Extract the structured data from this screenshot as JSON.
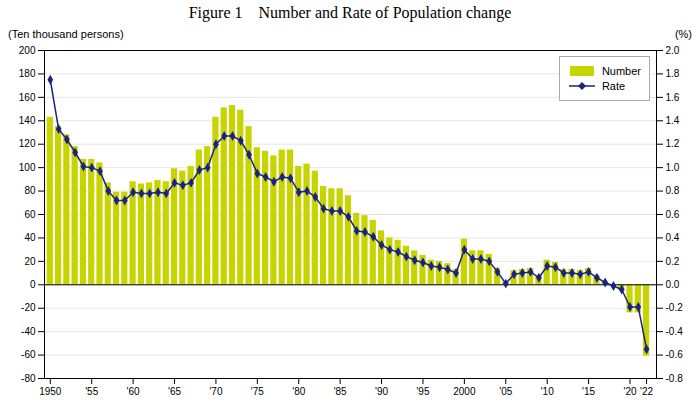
{
  "chart_data": {
    "type": "bar",
    "title": "Figure 1    Number and Rate of Population change",
    "ylabel": "(Ten thousand persons)",
    "y2label": "(%)",
    "x": [
      1950,
      1951,
      1952,
      1953,
      1954,
      1955,
      1956,
      1957,
      1958,
      1959,
      1960,
      1961,
      1962,
      1963,
      1964,
      1965,
      1966,
      1967,
      1968,
      1969,
      1970,
      1971,
      1972,
      1973,
      1974,
      1975,
      1976,
      1977,
      1978,
      1979,
      1980,
      1981,
      1982,
      1983,
      1984,
      1985,
      1986,
      1987,
      1988,
      1989,
      1990,
      1991,
      1992,
      1993,
      1994,
      1995,
      1996,
      1997,
      1998,
      1999,
      2000,
      2001,
      2002,
      2003,
      2004,
      2005,
      2006,
      2007,
      2008,
      2009,
      2010,
      2011,
      2012,
      2013,
      2014,
      2015,
      2016,
      2017,
      2018,
      2019,
      2020,
      2021,
      2022
    ],
    "series": [
      {
        "name": "Number",
        "type": "bar",
        "color": "#c8d400",
        "values": [
          143,
          135,
          128,
          118,
          107,
          107,
          104,
          87,
          79,
          79,
          88,
          86,
          87,
          89,
          88,
          99,
          97,
          101,
          115,
          118,
          143,
          151,
          153,
          149,
          135,
          117,
          114,
          110,
          115,
          115,
          101,
          103,
          97,
          84,
          82,
          82,
          76,
          61,
          59,
          55,
          46,
          40,
          38,
          33,
          29,
          25,
          21,
          20,
          18,
          13,
          39,
          29,
          29,
          26,
          14,
          2,
          12,
          13,
          14,
          8,
          21,
          19,
          13,
          13,
          12,
          14,
          8,
          2,
          -1,
          -5,
          -24,
          -24,
          -61
        ]
      },
      {
        "name": "Rate",
        "type": "line",
        "color": "#1a237e",
        "marker": "diamond",
        "axis": "y2",
        "values": [
          1.75,
          1.33,
          1.24,
          1.13,
          1.01,
          1.0,
          0.97,
          0.8,
          0.72,
          0.72,
          0.79,
          0.78,
          0.78,
          0.79,
          0.78,
          0.87,
          0.85,
          0.87,
          0.98,
          1.0,
          1.2,
          1.27,
          1.27,
          1.23,
          1.11,
          0.95,
          0.92,
          0.88,
          0.92,
          0.91,
          0.79,
          0.8,
          0.75,
          0.65,
          0.63,
          0.63,
          0.58,
          0.46,
          0.45,
          0.41,
          0.34,
          0.3,
          0.28,
          0.24,
          0.21,
          0.19,
          0.16,
          0.15,
          0.13,
          0.1,
          0.3,
          0.22,
          0.22,
          0.2,
          0.11,
          0.01,
          0.09,
          0.1,
          0.11,
          0.06,
          0.16,
          0.15,
          0.1,
          0.1,
          0.09,
          0.11,
          0.06,
          0.02,
          -0.01,
          -0.04,
          -0.19,
          -0.19,
          -0.55
        ]
      }
    ],
    "xlim": [
      1949.3,
      2023.2
    ],
    "xticks": [
      1950,
      {
        "value": 1955,
        "label": "'55"
      },
      {
        "value": 1960,
        "label": "'60"
      },
      {
        "value": 1965,
        "label": "'65"
      },
      {
        "value": 1970,
        "label": "'70"
      },
      {
        "value": 1975,
        "label": "'75"
      },
      {
        "value": 1980,
        "label": "'80"
      },
      {
        "value": 1985,
        "label": "'85"
      },
      {
        "value": 1990,
        "label": "'90"
      },
      {
        "value": 1995,
        "label": "'95"
      },
      2000,
      {
        "value": 2005,
        "label": "'05"
      },
      {
        "value": 2010,
        "label": "'10"
      },
      {
        "value": 2015,
        "label": "'15"
      },
      {
        "value": 2020,
        "label": "'20"
      },
      {
        "value": 2022,
        "label": "'22"
      }
    ],
    "ylim": [
      -80,
      200
    ],
    "yticks": [
      -80,
      -60,
      -40,
      -20,
      0,
      20,
      40,
      60,
      80,
      100,
      120,
      140,
      160,
      180,
      200
    ],
    "y2lim": [
      -0.8,
      2.0
    ],
    "y2ticks": [
      -0.8,
      -0.6,
      -0.4,
      -0.2,
      {
        "value": 0.0,
        "label": "0.0"
      },
      0.2,
      0.4,
      0.6,
      0.8,
      {
        "value": 1.0,
        "label": "1.0"
      },
      1.2,
      1.4,
      1.6,
      1.8,
      {
        "value": 2.0,
        "label": "2.0"
      }
    ],
    "grid": true,
    "legend": "upper right"
  }
}
